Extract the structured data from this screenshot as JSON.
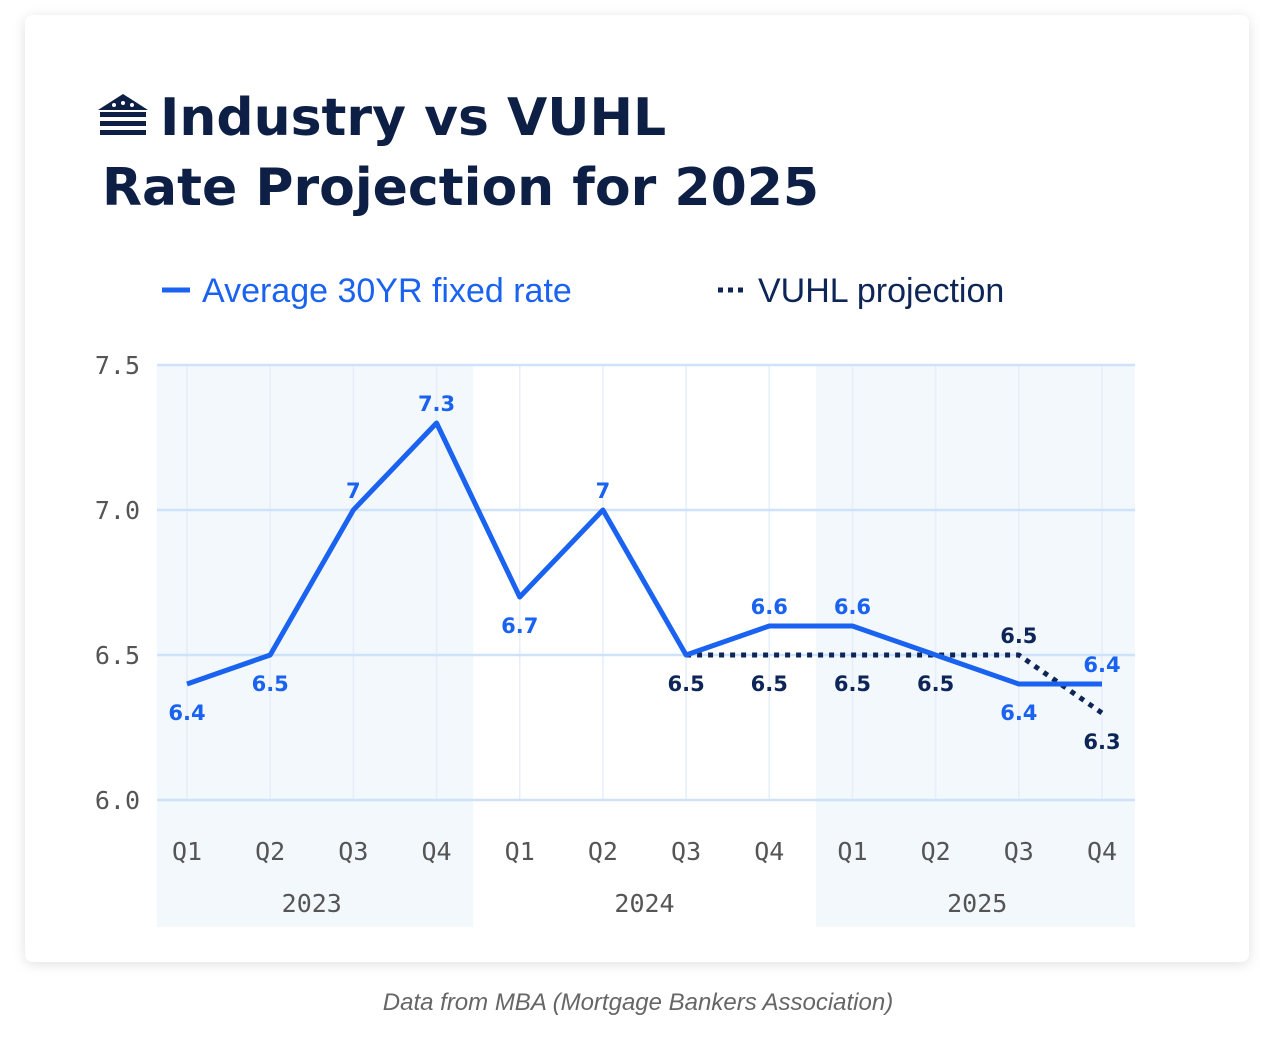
{
  "chart_data": {
    "type": "line",
    "title": [
      "Industry vs VUHL",
      "Rate Projection for 2025"
    ],
    "categories": [
      "Q1",
      "Q2",
      "Q3",
      "Q4",
      "Q1",
      "Q2",
      "Q3",
      "Q4",
      "Q1",
      "Q2",
      "Q3",
      "Q4"
    ],
    "groups": [
      "2023",
      "2024",
      "2025"
    ],
    "series": [
      {
        "name": "Average 30YR fixed rate",
        "color": "#1a62f0",
        "style": "solid",
        "values": [
          6.4,
          6.5,
          7,
          7.3,
          6.7,
          7,
          6.5,
          6.6,
          6.6,
          6.5,
          6.4,
          6.4
        ]
      },
      {
        "name": "VUHL projection",
        "color": "#0d2657",
        "style": "dotted",
        "values": [
          null,
          null,
          null,
          null,
          null,
          null,
          6.5,
          6.5,
          6.5,
          6.5,
          6.5,
          6.3
        ]
      }
    ],
    "ylim": [
      6.0,
      7.5
    ],
    "yticks": [
      {
        "value": 6.0,
        "label": "6.0"
      },
      6.5,
      {
        "value": 7.0,
        "label": "7.0"
      },
      7.5
    ],
    "grid": true,
    "source": "Data from MBA (Mortgage Bankers Association)"
  }
}
